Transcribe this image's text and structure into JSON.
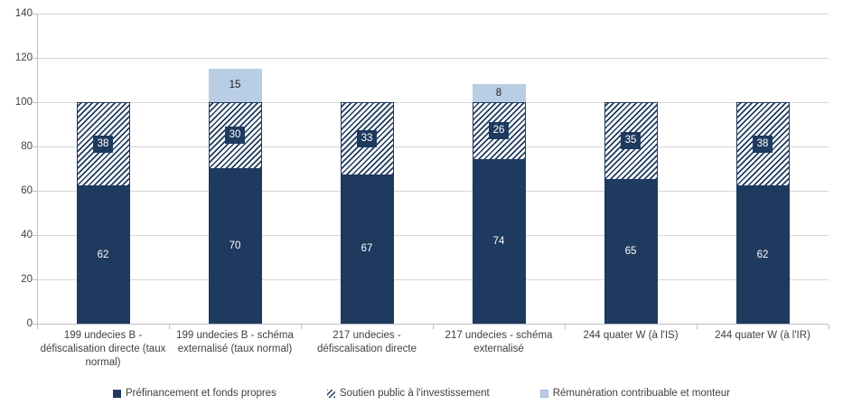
{
  "chart_data": {
    "type": "bar",
    "stacked": true,
    "categories": [
      "199 undecies B - défiscalisation directe (taux normal)",
      "199 undecies B - schéma externalisé (taux normal)",
      "217 undecies - défiscalisation directe",
      "217 undecies - schéma externalisé",
      "244 quater W (à l'IS)",
      "244 quater W (à l'IR)"
    ],
    "series": [
      {
        "name": "Préfinancement et fonds propres",
        "style": "solid",
        "values": [
          62,
          70,
          67,
          74,
          65,
          62
        ]
      },
      {
        "name": "Soutien public à l'investissement",
        "style": "hatched",
        "values": [
          38,
          30,
          33,
          26,
          35,
          38
        ]
      },
      {
        "name": "Rémunération contribuable et monteur",
        "style": "light",
        "values": [
          0,
          15,
          0,
          8,
          0,
          0
        ]
      }
    ],
    "ylim": [
      0,
      140
    ],
    "ytick_step": 20,
    "yticks": [
      "0",
      "20",
      "40",
      "60",
      "80",
      "100",
      "120",
      "140"
    ],
    "grid": true,
    "legend_position": "bottom"
  },
  "colors": {
    "navy": "#1E3A5E",
    "light_blue": "#B9CDE5",
    "gridline": "#D6D6D6",
    "axis": "#BFBFBF",
    "text": "#404040"
  }
}
